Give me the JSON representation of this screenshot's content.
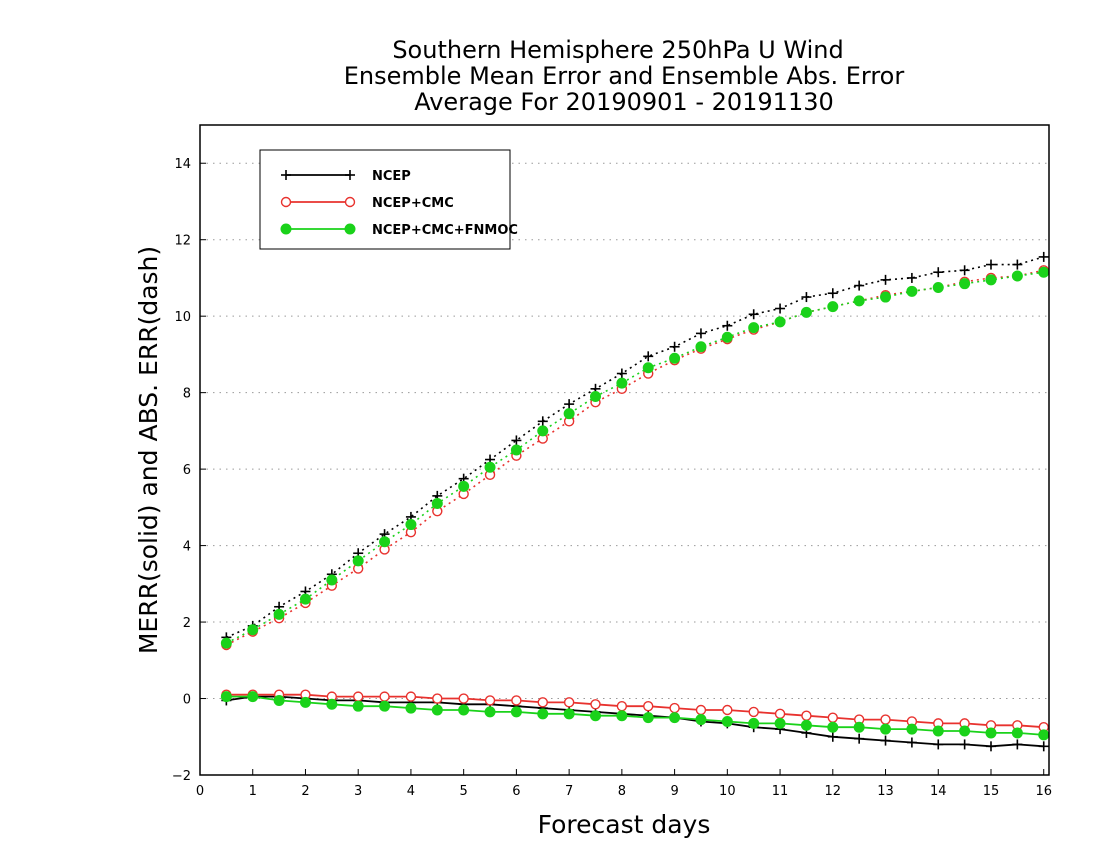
{
  "chart_data": {
    "type": "line",
    "title_lines": [
      "Southern Hemisphere 250hPa U Wind",
      "Ensemble Mean Error and Ensemble Abs. Error",
      "Average For 20190901 - 20191130"
    ],
    "xlabel": "Forecast days",
    "ylabel": "MERR(solid) and ABS. ERR(dash)",
    "xlim": [
      0,
      16.1
    ],
    "ylim": [
      -2,
      15
    ],
    "xticks": [
      0,
      1,
      2,
      3,
      4,
      5,
      6,
      7,
      8,
      9,
      10,
      11,
      12,
      13,
      14,
      15,
      16
    ],
    "yticks": [
      -2,
      0,
      2,
      4,
      6,
      8,
      10,
      12,
      14
    ],
    "grid": "horizontal dotted",
    "legend_position": "top-left",
    "x": [
      0.5,
      1,
      1.5,
      2,
      2.5,
      3,
      3.5,
      4,
      4.5,
      5,
      5.5,
      6,
      6.5,
      7,
      7.5,
      8,
      8.5,
      9,
      9.5,
      10,
      10.5,
      11,
      11.5,
      12,
      12.5,
      13,
      13.5,
      14,
      14.5,
      15,
      15.5,
      16
    ],
    "series": [
      {
        "name": "NCEP",
        "color": "#000000",
        "marker": "plus",
        "abs_err": [
          1.6,
          1.9,
          2.4,
          2.8,
          3.25,
          3.8,
          4.3,
          4.75,
          5.3,
          5.75,
          6.25,
          6.75,
          7.25,
          7.7,
          8.1,
          8.5,
          8.95,
          9.2,
          9.55,
          9.75,
          10.05,
          10.2,
          10.5,
          10.6,
          10.8,
          10.95,
          11.0,
          11.15,
          11.2,
          11.35,
          11.35,
          11.55
        ],
        "mean_err": [
          -0.05,
          0.05,
          0.05,
          0.0,
          -0.05,
          -0.05,
          -0.1,
          -0.1,
          -0.1,
          -0.15,
          -0.15,
          -0.2,
          -0.25,
          -0.3,
          -0.35,
          -0.4,
          -0.45,
          -0.5,
          -0.6,
          -0.65,
          -0.75,
          -0.8,
          -0.9,
          -1.0,
          -1.05,
          -1.1,
          -1.15,
          -1.2,
          -1.2,
          -1.25,
          -1.2,
          -1.25
        ]
      },
      {
        "name": "NCEP+CMC",
        "color": "#e8322e",
        "marker": "open-circle",
        "abs_err": [
          1.4,
          1.75,
          2.1,
          2.5,
          2.95,
          3.4,
          3.9,
          4.35,
          4.9,
          5.35,
          5.85,
          6.35,
          6.8,
          7.25,
          7.75,
          8.1,
          8.5,
          8.85,
          9.15,
          9.4,
          9.65,
          9.85,
          10.1,
          10.25,
          10.4,
          10.55,
          10.65,
          10.75,
          10.9,
          11.0,
          11.05,
          11.2
        ],
        "mean_err": [
          0.1,
          0.1,
          0.1,
          0.1,
          0.05,
          0.05,
          0.05,
          0.05,
          0.0,
          0.0,
          -0.05,
          -0.05,
          -0.1,
          -0.1,
          -0.15,
          -0.2,
          -0.2,
          -0.25,
          -0.3,
          -0.3,
          -0.35,
          -0.4,
          -0.45,
          -0.5,
          -0.55,
          -0.55,
          -0.6,
          -0.65,
          -0.65,
          -0.7,
          -0.7,
          -0.75
        ]
      },
      {
        "name": "NCEP+CMC+FNMOC",
        "color": "#1ad21a",
        "marker": "filled-circle",
        "abs_err": [
          1.45,
          1.8,
          2.2,
          2.6,
          3.1,
          3.6,
          4.1,
          4.55,
          5.1,
          5.55,
          6.05,
          6.5,
          7.0,
          7.45,
          7.9,
          8.25,
          8.65,
          8.9,
          9.2,
          9.45,
          9.7,
          9.85,
          10.1,
          10.25,
          10.4,
          10.5,
          10.65,
          10.75,
          10.85,
          10.95,
          11.05,
          11.15
        ],
        "mean_err": [
          0.05,
          0.05,
          -0.05,
          -0.1,
          -0.15,
          -0.2,
          -0.2,
          -0.25,
          -0.3,
          -0.3,
          -0.35,
          -0.35,
          -0.4,
          -0.4,
          -0.45,
          -0.45,
          -0.5,
          -0.5,
          -0.55,
          -0.6,
          -0.65,
          -0.65,
          -0.7,
          -0.75,
          -0.75,
          -0.8,
          -0.8,
          -0.85,
          -0.85,
          -0.9,
          -0.9,
          -0.95
        ]
      }
    ]
  }
}
